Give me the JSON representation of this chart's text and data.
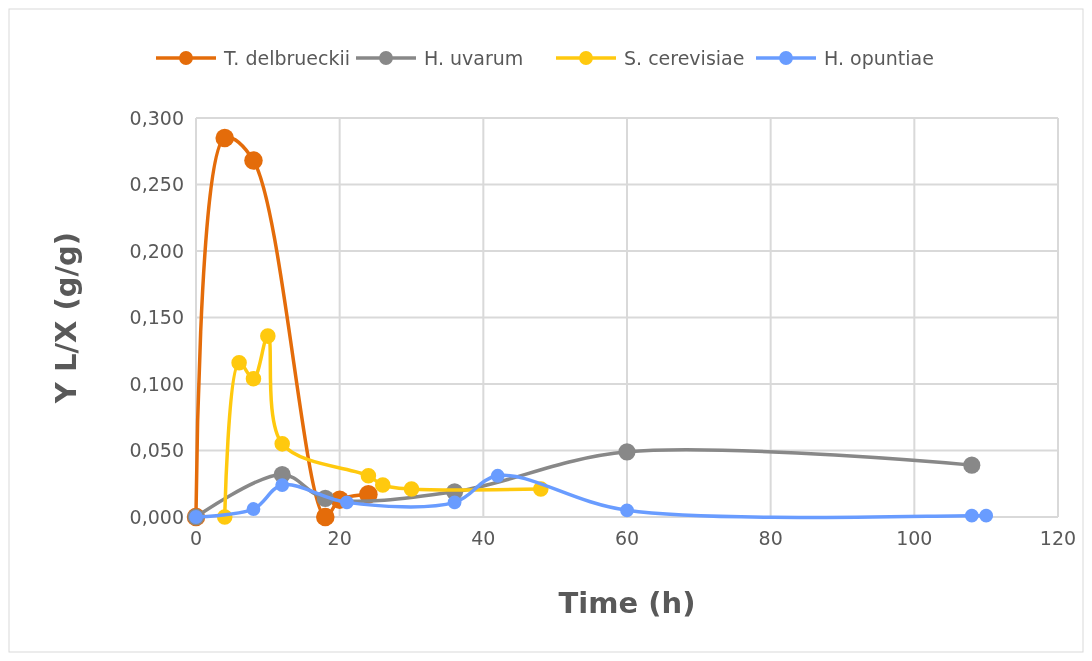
{
  "chart_data": {
    "type": "line",
    "xlabel": "Time (h)",
    "ylabel": "Y L/X (g/g)",
    "xlim": [
      0,
      120
    ],
    "xticks": [
      0,
      20,
      40,
      60,
      80,
      100,
      120
    ],
    "ylim": [
      0,
      0.3
    ],
    "yticks": [
      {
        "value": 0,
        "label": "0,000"
      },
      {
        "value": 0.05,
        "label": "0,050"
      },
      {
        "value": 0.1,
        "label": "0,100"
      },
      {
        "value": 0.15,
        "label": "0,150"
      },
      {
        "value": 0.2,
        "label": "0,200"
      },
      {
        "value": 0.25,
        "label": "0,250"
      },
      {
        "value": 0.3,
        "label": "0,300"
      }
    ],
    "grid": true,
    "legend": "top",
    "marker": "circle",
    "series": [
      {
        "name": "T. delbrueckii",
        "color": "#e46c0a",
        "x": [
          0,
          4,
          8,
          18,
          20,
          24
        ],
        "values": [
          0,
          0.285,
          0.268,
          0,
          0.013,
          0.017
        ]
      },
      {
        "name": "H. uvarum",
        "color": "#888888",
        "x": [
          0,
          12,
          18,
          36,
          60,
          108
        ],
        "values": [
          0,
          0.032,
          0.014,
          0.019,
          0.049,
          0.039
        ]
      },
      {
        "name": "S. cerevisiae",
        "color": "#ffc90e",
        "x": [
          4,
          6,
          8,
          10,
          12,
          24,
          26,
          30,
          48
        ],
        "values": [
          0,
          0.116,
          0.104,
          0.136,
          0.055,
          0.031,
          0.024,
          0.021,
          0.021
        ]
      },
      {
        "name": "H. opuntiae",
        "color": "#699cff",
        "x": [
          0,
          8,
          12,
          21,
          36,
          42,
          60,
          108,
          110
        ],
        "values": [
          0,
          0.006,
          0.024,
          0.011,
          0.011,
          0.031,
          0.005,
          0.001,
          0.001
        ]
      }
    ]
  }
}
